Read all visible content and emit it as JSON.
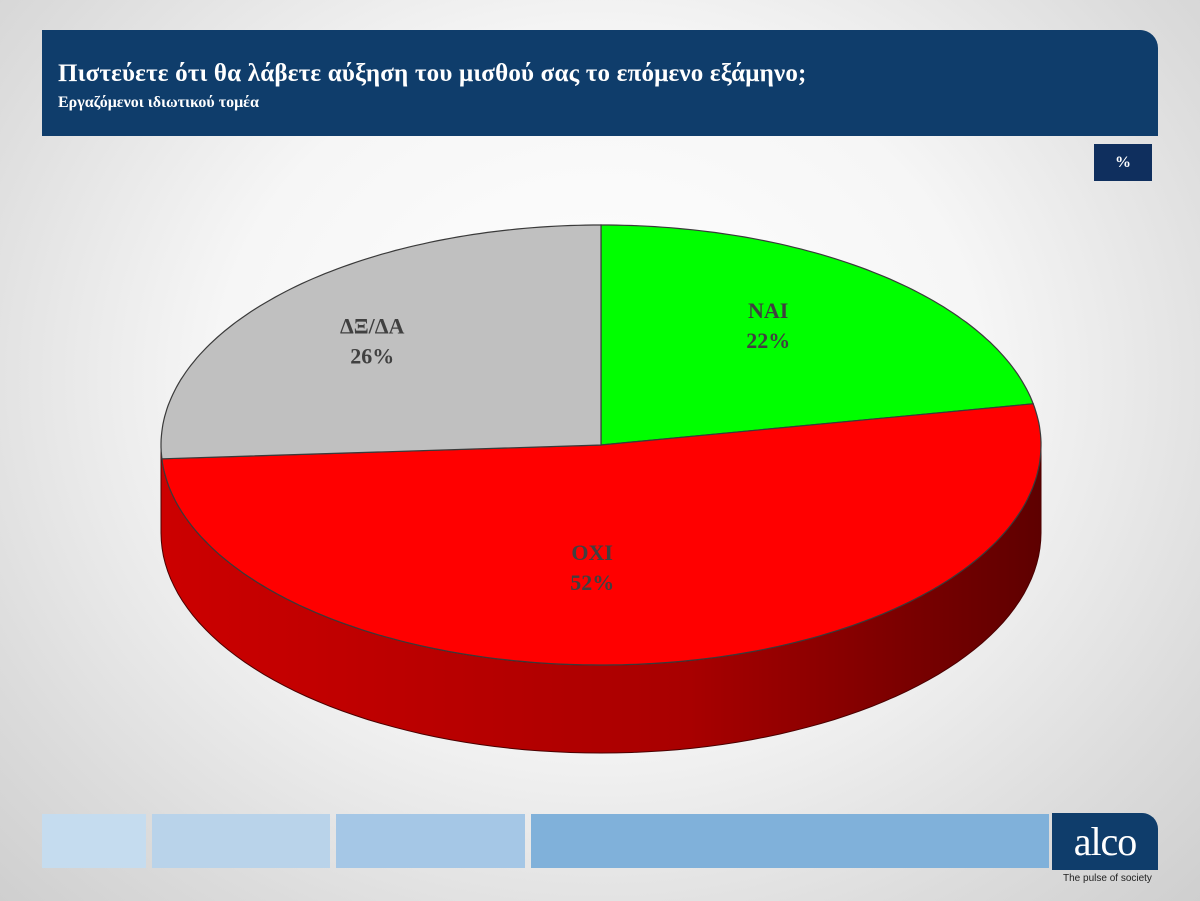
{
  "header": {
    "title": "Πιστεύετε ότι θα λάβετε αύξηση του μισθού σας το επόμενο εξάμηνο;",
    "subtitle": "Εργαζόμενοι ιδιωτικού τομέα"
  },
  "unit_badge": "%",
  "chart_data": {
    "type": "pie",
    "title": "Πιστεύετε ότι θα λάβετε αύξηση του μισθού σας το επόμενο εξάμηνο;",
    "subtitle": "Εργαζόμενοι ιδιωτικού τομέα",
    "unit": "%",
    "slices": [
      {
        "label": "ΝΑΙ",
        "value": 22,
        "value_label": "22%",
        "color": "#00ff00"
      },
      {
        "label": "ΟΧΙ",
        "value": 52,
        "value_label": "52%",
        "color": "#ff0000"
      },
      {
        "label": "ΔΞ/ΔΑ",
        "value": 26,
        "value_label": "26%",
        "color": "#c0c0c0"
      }
    ]
  },
  "footer": {
    "logo_text": "alco",
    "tagline": "The pulse of society",
    "bar_colors": [
      "#c5dcef",
      "#b9d3ea",
      "#a5c7e6",
      "#80b1da"
    ]
  }
}
